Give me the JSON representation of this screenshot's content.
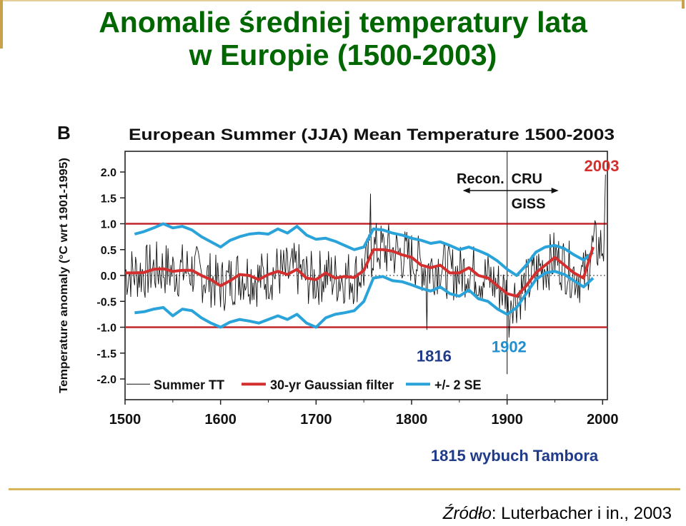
{
  "slide": {
    "title_line1": "Anomalie średniej temperatury lata",
    "title_line2": "w Europie (1500-2003)",
    "note": "1815 wybuch Tambora",
    "source_label": "Źródło",
    "source_text": ": Luterbacher i in., 2003"
  },
  "colors": {
    "title": "#006600",
    "reference_lines": "#c0272d",
    "gaussian": "#d32f2f",
    "se_band": "#29a3d9",
    "raw": "#111111",
    "annotation_blue": "#1f8fd0"
  },
  "chart_data": {
    "type": "line",
    "panel_label": "B",
    "title": "European Summer (JJA) Mean Temperature 1500-2003",
    "ylabel": "Temperature anomaly (°C wrt 1901-1995)",
    "xlabel": "",
    "xlim": [
      1500,
      2005
    ],
    "ylim": [
      -2.4,
      2.4
    ],
    "x_ticks": [
      1500,
      1600,
      1700,
      1800,
      1900,
      2000
    ],
    "y_ticks": [
      "2.0",
      "1.5",
      "1.0",
      "0.5",
      "0.0",
      "-0.5",
      "-1.0",
      "-1.5",
      "-2.0"
    ],
    "y_tick_values": [
      2.0,
      1.5,
      1.0,
      0.5,
      0.0,
      -0.5,
      -1.0,
      -1.5,
      -2.0
    ],
    "reference_lines": [
      1.0,
      -1.0
    ],
    "zero_line_dotted": true,
    "divider_year": 1900,
    "divider_labels": {
      "left": "Recon.",
      "right_top": "CRU",
      "right_bottom": "GISS"
    },
    "annotations": [
      {
        "text": "2003",
        "x": 2002,
        "y": 2.1
      },
      {
        "text": "1902",
        "x": 1902,
        "y": -1.4
      },
      {
        "text": "1816",
        "x": 1816,
        "y": -1.55
      }
    ],
    "legend": [
      "Summer TT",
      "30-yr Gaussian filter",
      "+/- 2 SE"
    ],
    "legend_position": "bottom",
    "series": [
      {
        "name": "30-yr Gaussian filter",
        "x": [
          1500,
          1510,
          1520,
          1530,
          1540,
          1550,
          1560,
          1570,
          1580,
          1590,
          1600,
          1610,
          1620,
          1630,
          1640,
          1650,
          1660,
          1670,
          1680,
          1690,
          1700,
          1710,
          1720,
          1730,
          1740,
          1750,
          1760,
          1770,
          1780,
          1790,
          1800,
          1810,
          1820,
          1830,
          1840,
          1850,
          1860,
          1870,
          1880,
          1890,
          1900,
          1910,
          1920,
          1930,
          1940,
          1950,
          1960,
          1970,
          1980,
          1990
        ],
        "y": [
          0.05,
          0.05,
          0.06,
          0.12,
          0.13,
          0.08,
          0.1,
          0.1,
          0.0,
          -0.08,
          -0.2,
          -0.1,
          0.02,
          0.0,
          -0.08,
          0.02,
          0.08,
          0.02,
          0.12,
          -0.05,
          -0.08,
          0.05,
          -0.05,
          -0.02,
          -0.04,
          0.1,
          0.5,
          0.5,
          0.47,
          0.4,
          0.35,
          0.2,
          0.15,
          0.2,
          0.05,
          0.05,
          0.15,
          0.0,
          -0.05,
          -0.2,
          -0.35,
          -0.4,
          -0.2,
          0.05,
          0.2,
          0.35,
          0.2,
          0.05,
          -0.05,
          0.55
        ]
      },
      {
        "name": "+/- 2 SE upper",
        "x": [
          1510,
          1520,
          1530,
          1540,
          1550,
          1560,
          1570,
          1580,
          1590,
          1600,
          1610,
          1620,
          1630,
          1640,
          1650,
          1660,
          1670,
          1680,
          1690,
          1700,
          1710,
          1720,
          1730,
          1740,
          1750,
          1760,
          1770,
          1780,
          1790,
          1800,
          1810,
          1820,
          1830,
          1840,
          1850,
          1860,
          1870,
          1880,
          1890,
          1900,
          1910,
          1920,
          1930,
          1940,
          1950,
          1960,
          1970,
          1980,
          1990
        ],
        "y": [
          0.8,
          0.85,
          0.92,
          1.0,
          0.92,
          0.95,
          0.88,
          0.75,
          0.65,
          0.55,
          0.68,
          0.75,
          0.8,
          0.82,
          0.8,
          0.9,
          0.82,
          0.95,
          0.78,
          0.7,
          0.72,
          0.66,
          0.58,
          0.5,
          0.55,
          0.9,
          0.88,
          0.82,
          0.78,
          0.72,
          0.68,
          0.62,
          0.65,
          0.58,
          0.5,
          0.55,
          0.48,
          0.4,
          0.28,
          0.12,
          0.0,
          0.2,
          0.45,
          0.55,
          0.58,
          0.52,
          0.4,
          0.3,
          0.45
        ]
      },
      {
        "name": "+/- 2 SE lower",
        "x": [
          1510,
          1520,
          1530,
          1540,
          1550,
          1560,
          1570,
          1580,
          1590,
          1600,
          1610,
          1620,
          1630,
          1640,
          1650,
          1660,
          1670,
          1680,
          1690,
          1700,
          1710,
          1720,
          1730,
          1740,
          1750,
          1760,
          1770,
          1780,
          1790,
          1800,
          1810,
          1820,
          1830,
          1840,
          1850,
          1860,
          1870,
          1880,
          1890,
          1900,
          1910,
          1920,
          1930,
          1940,
          1950,
          1960,
          1970,
          1980,
          1990
        ],
        "y": [
          -0.72,
          -0.7,
          -0.65,
          -0.62,
          -0.78,
          -0.65,
          -0.68,
          -0.82,
          -0.92,
          -1.0,
          -0.9,
          -0.85,
          -0.88,
          -0.92,
          -0.85,
          -0.78,
          -0.85,
          -0.75,
          -0.92,
          -1.0,
          -0.82,
          -0.75,
          -0.72,
          -0.68,
          -0.5,
          -0.05,
          -0.02,
          -0.1,
          -0.12,
          -0.18,
          -0.25,
          -0.3,
          -0.22,
          -0.35,
          -0.4,
          -0.28,
          -0.45,
          -0.5,
          -0.65,
          -0.75,
          -0.62,
          -0.35,
          -0.08,
          0.05,
          0.08,
          0.02,
          -0.1,
          -0.22,
          -0.05
        ]
      }
    ]
  }
}
